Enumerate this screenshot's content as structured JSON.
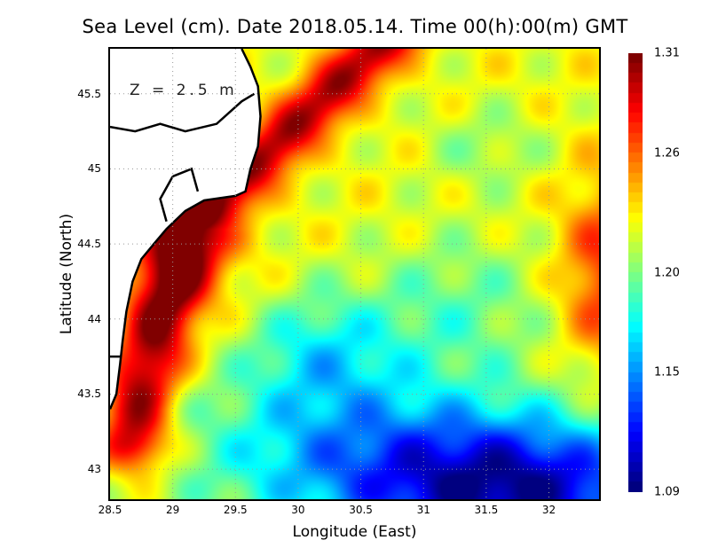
{
  "title": "Sea Level (cm). Date 2018.05.14. Time 00(h):00(m) GMT",
  "depth_label": "Z = 2.5 m",
  "chart_data": {
    "type": "heatmap",
    "title": "Sea Level (cm). Date 2018.05.14. Time 00(h):00(m) GMT",
    "xlabel": "Longitude (East)",
    "ylabel": "Latitude (North)",
    "xlim": [
      28.5,
      32.4
    ],
    "ylim": [
      42.8,
      45.8
    ],
    "xticks": [
      "28.5",
      "29",
      "29.5",
      "30",
      "30.5",
      "31",
      "31.5",
      "32"
    ],
    "yticks": [
      "43",
      "43.5",
      "44",
      "44.5",
      "45",
      "45.5"
    ],
    "grid": true,
    "colorbar": {
      "min": 1.09,
      "max": 1.31,
      "ticks": [
        "1.09",
        "1.15",
        "1.20",
        "1.26",
        "1.31"
      ],
      "colormap": "jet"
    },
    "base_value": 1.225,
    "features": [
      {
        "name": "western coastal maximum",
        "lon": 29.0,
        "lat": 44.4,
        "value": 1.31
      },
      {
        "name": "southern minimum",
        "lon": 31.7,
        "lat": 42.9,
        "value": 1.1
      },
      {
        "name": "eastern high",
        "lon": 32.4,
        "lat": 44.3,
        "value": 1.27
      },
      {
        "name": "central low",
        "lon": 30.2,
        "lat": 43.8,
        "value": 1.17
      },
      {
        "name": "northeast low",
        "lon": 31.5,
        "lat": 45.2,
        "value": 1.2
      }
    ]
  }
}
